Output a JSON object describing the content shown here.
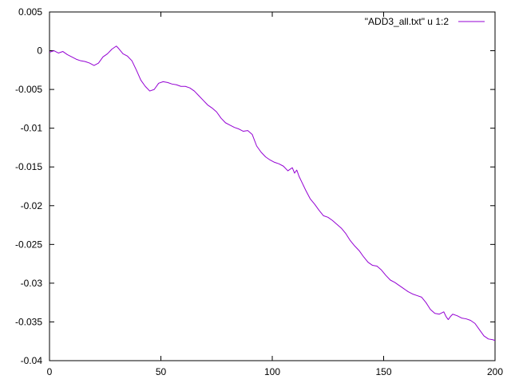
{
  "chart_data": {
    "type": "line",
    "title": "",
    "xlabel": "",
    "ylabel": "",
    "xlim": [
      0,
      200
    ],
    "ylim": [
      -0.04,
      0.005
    ],
    "x_ticks": [
      0,
      50,
      100,
      150,
      200
    ],
    "x_tick_labels": [
      "0",
      "50",
      "100",
      "150",
      "200"
    ],
    "y_ticks": [
      0.005,
      0,
      -0.005,
      -0.01,
      -0.015,
      -0.02,
      -0.025,
      -0.03,
      -0.035,
      -0.04
    ],
    "y_tick_labels": [
      "0.005",
      "0",
      "-0.005",
      "-0.01",
      "-0.015",
      "-0.02",
      "-0.025",
      "-0.03",
      "-0.035",
      "-0.04"
    ],
    "grid": false,
    "legend_position": "top-right",
    "series": [
      {
        "name": "\"ADD3_all.txt\" u 1:2",
        "color": "#9400d3",
        "x": [
          0,
          2,
          4,
          6,
          8,
          10,
          12,
          14,
          16,
          18,
          20,
          22,
          24,
          26,
          28,
          30,
          31,
          33,
          35,
          37,
          39,
          41,
          43,
          45,
          47,
          49,
          51,
          53,
          55,
          57,
          59,
          61,
          63,
          65,
          67,
          69,
          71,
          73,
          75,
          77,
          79,
          81,
          83,
          85,
          87,
          89,
          91,
          93,
          95,
          97,
          99,
          101,
          103,
          105,
          107,
          109,
          110,
          111,
          112,
          113,
          115,
          117,
          119,
          121,
          123,
          125,
          127,
          129,
          131,
          133,
          135,
          137,
          139,
          141,
          143,
          145,
          147,
          149,
          151,
          153,
          155,
          157,
          159,
          161,
          163,
          165,
          167,
          169,
          171,
          173,
          175,
          177,
          178,
          179,
          180,
          181,
          183,
          185,
          187,
          189,
          191,
          193,
          195,
          197,
          199,
          200
        ],
        "y": [
          -0.0002,
          0.0,
          -0.0003,
          -0.0001,
          -0.0005,
          -0.0008,
          -0.0011,
          -0.0013,
          -0.0014,
          -0.0016,
          -0.0019,
          -0.0016,
          -0.0008,
          -0.0004,
          0.0002,
          0.0006,
          0.0003,
          -0.0004,
          -0.0007,
          -0.0013,
          -0.0025,
          -0.0038,
          -0.0046,
          -0.0052,
          -0.005,
          -0.0042,
          -0.004,
          -0.0041,
          -0.0043,
          -0.0044,
          -0.0046,
          -0.0046,
          -0.0048,
          -0.0052,
          -0.0058,
          -0.0064,
          -0.007,
          -0.0074,
          -0.0079,
          -0.0087,
          -0.0093,
          -0.0096,
          -0.0099,
          -0.0101,
          -0.0104,
          -0.0103,
          -0.0108,
          -0.0123,
          -0.0131,
          -0.0137,
          -0.0141,
          -0.0144,
          -0.0146,
          -0.0149,
          -0.0155,
          -0.0151,
          -0.0158,
          -0.0154,
          -0.0162,
          -0.0168,
          -0.018,
          -0.0191,
          -0.0198,
          -0.0206,
          -0.0213,
          -0.0215,
          -0.0219,
          -0.0224,
          -0.0229,
          -0.0236,
          -0.0245,
          -0.0252,
          -0.0258,
          -0.0266,
          -0.0273,
          -0.0277,
          -0.0278,
          -0.0283,
          -0.029,
          -0.0296,
          -0.0299,
          -0.0303,
          -0.0307,
          -0.0311,
          -0.0314,
          -0.0316,
          -0.0318,
          -0.0325,
          -0.0334,
          -0.0339,
          -0.034,
          -0.0337,
          -0.0343,
          -0.0347,
          -0.0343,
          -0.034,
          -0.0342,
          -0.0345,
          -0.0346,
          -0.0348,
          -0.0352,
          -0.036,
          -0.0368,
          -0.0372,
          -0.0373,
          -0.0374
        ]
      }
    ]
  }
}
